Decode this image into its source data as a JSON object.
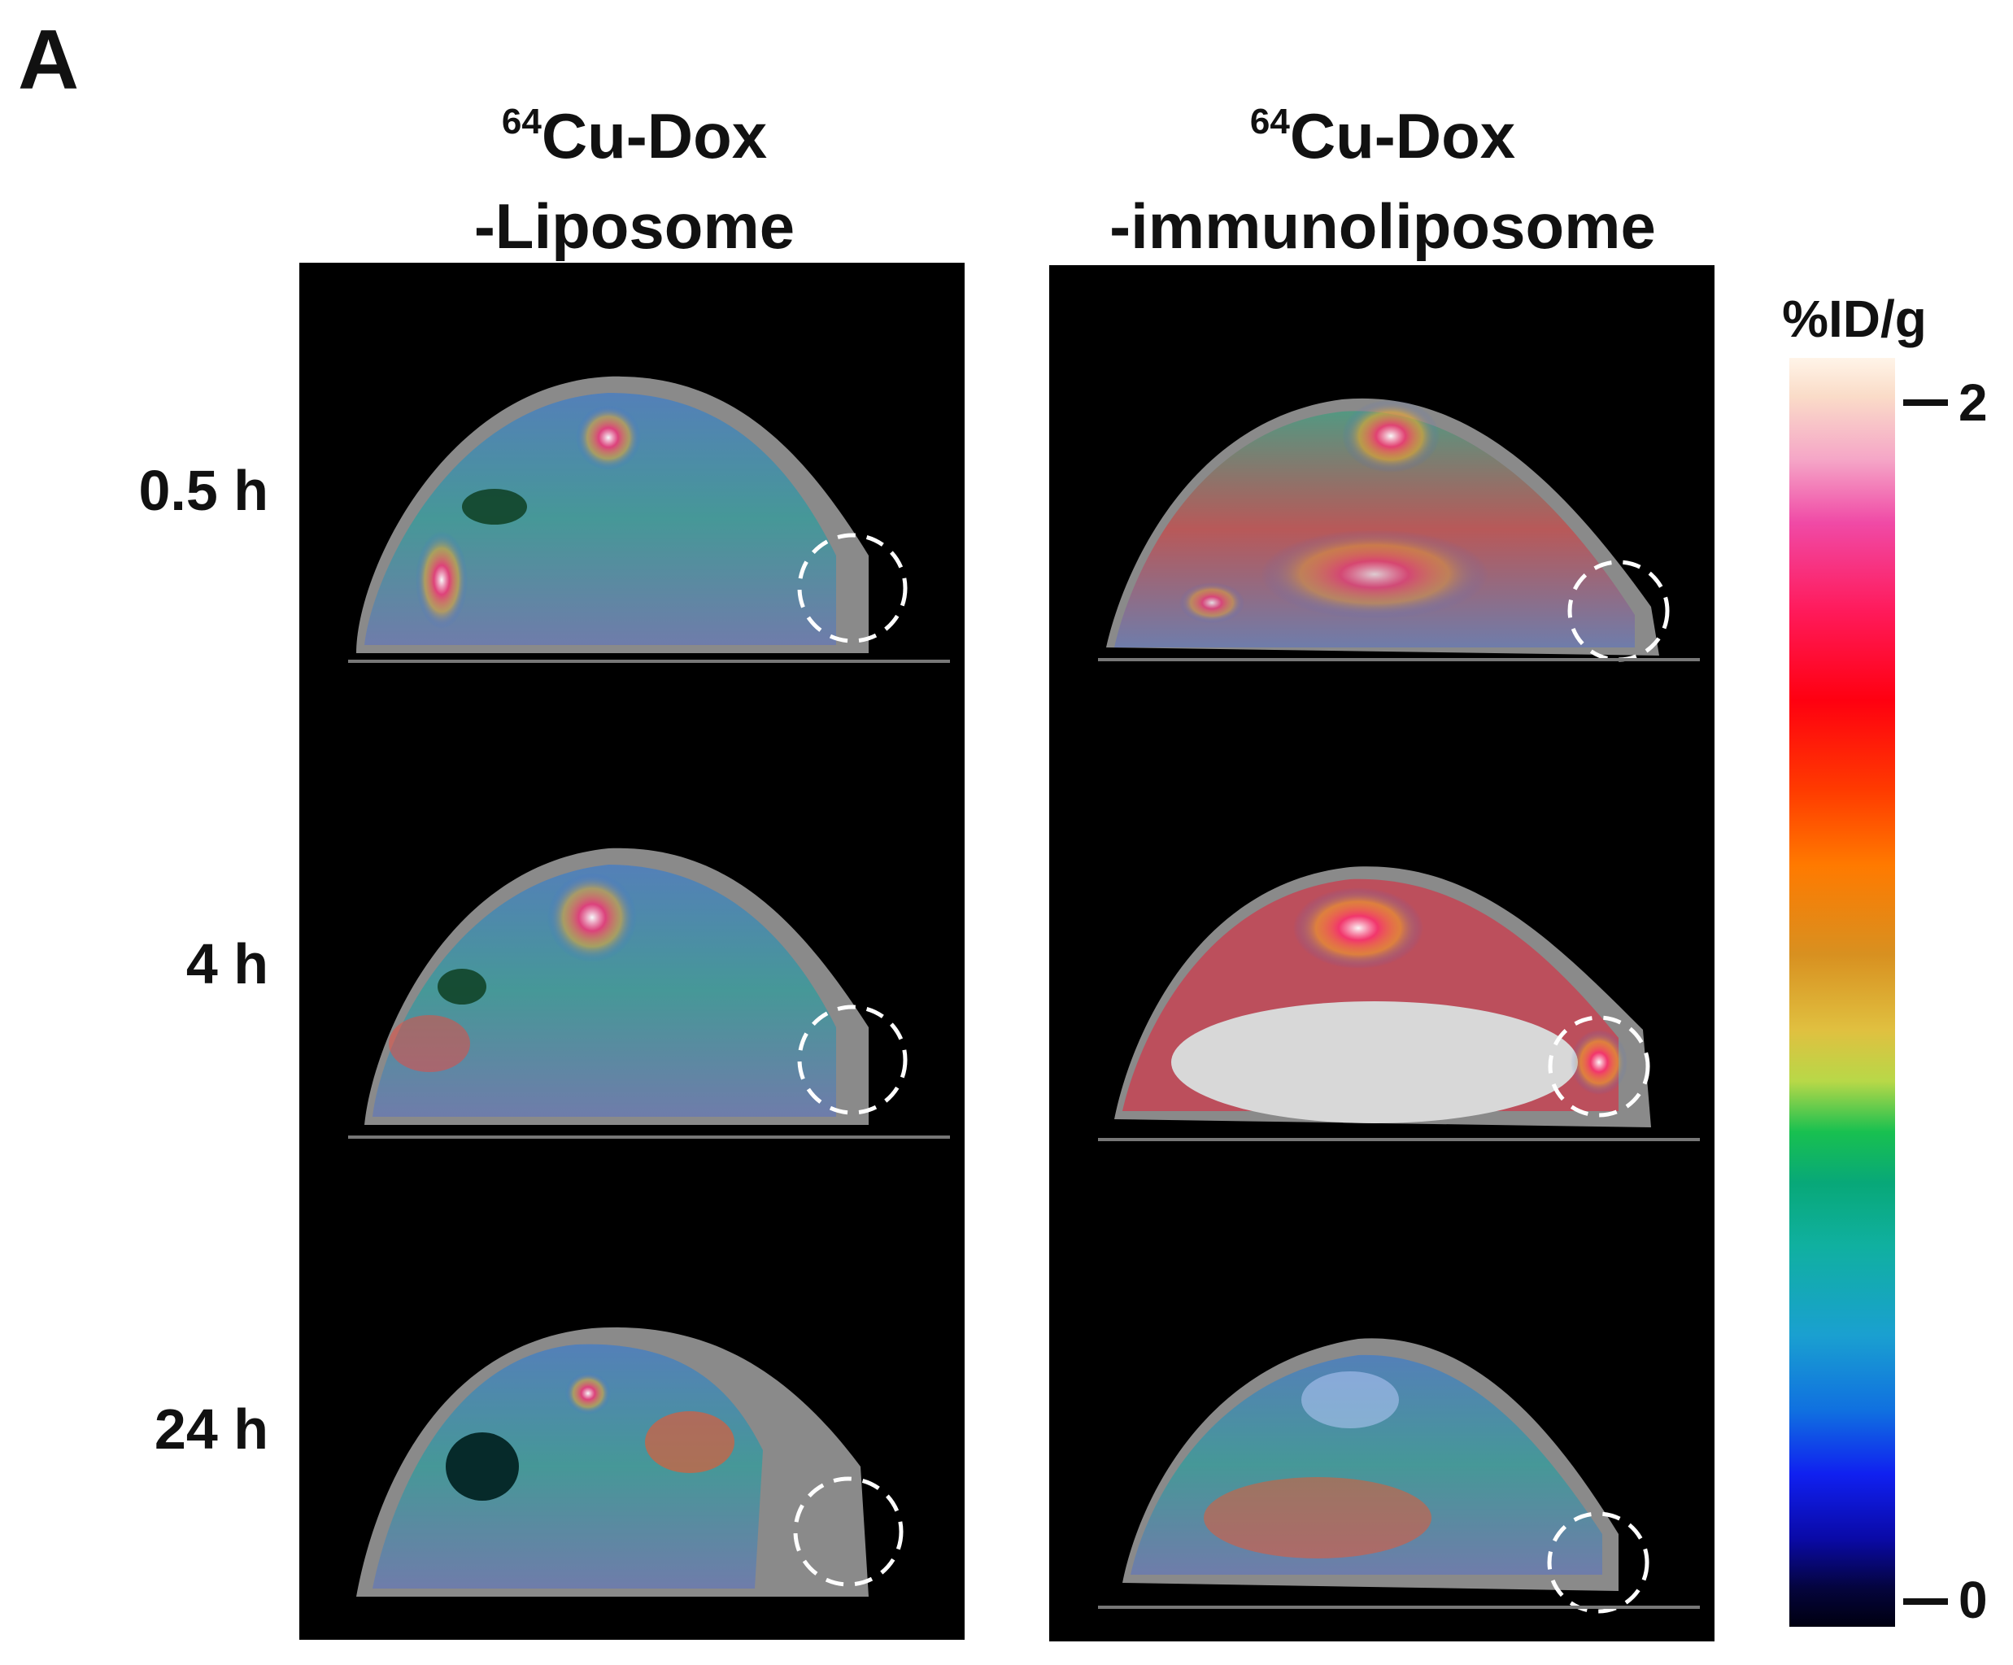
{
  "panel_label": "A",
  "columns": [
    {
      "isotope": "64",
      "line1": "Cu-Dox",
      "line2": "-Liposome"
    },
    {
      "isotope": "64",
      "line1": "Cu-Dox",
      "line2": "-immunoliposome"
    }
  ],
  "rows": [
    {
      "label": "0.5 h"
    },
    {
      "label": "4 h"
    },
    {
      "label": "24 h"
    }
  ],
  "colorbar": {
    "title": "%ID/g",
    "max_label": "2",
    "min_label": "0",
    "max": 2,
    "min": 0
  },
  "colors": {
    "background": "#000000",
    "tissue": "#8a8a8a",
    "tumor_circle": "#ffffff"
  }
}
